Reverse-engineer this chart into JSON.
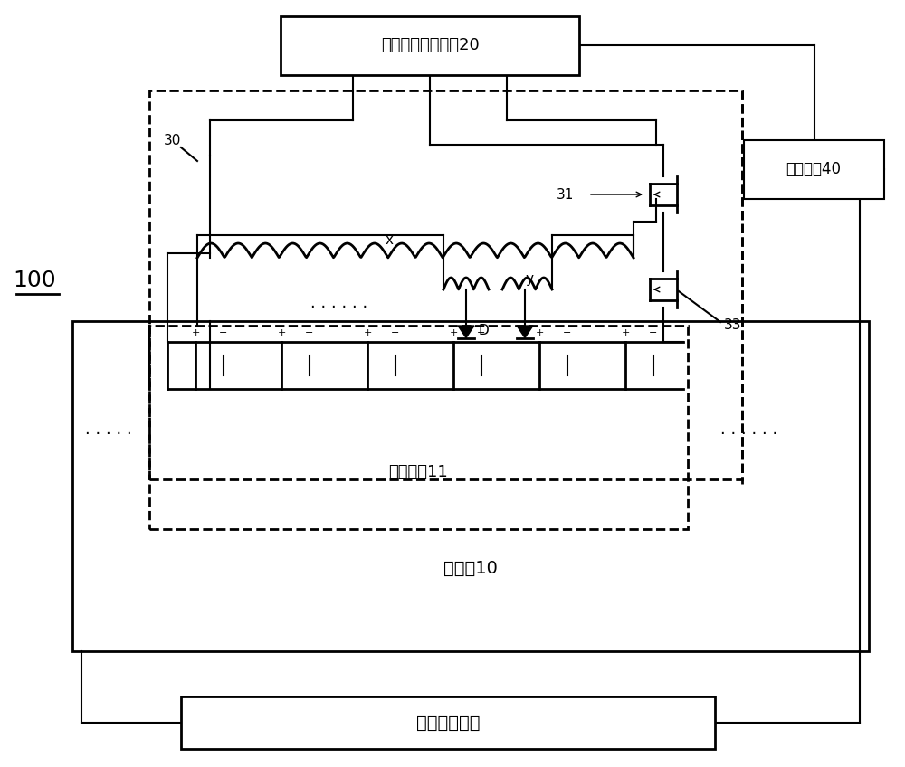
{
  "bg_color": "#ffffff",
  "line_color": "#000000",
  "box_top_label": "外部辅助均衡模块20",
  "box_control_label": "控制模块40",
  "box_battery_module_label": "电池模组11",
  "box_battery_pack_label": "电池包10",
  "box_bottom_label": "整车高压回路",
  "label_100": "100",
  "label_30": "30",
  "label_31": "31",
  "label_33": "33",
  "label_x": "x",
  "label_y": "y",
  "label_D": "D",
  "font_size_labels": 11,
  "font_size_box": 12,
  "font_size_large": 16
}
